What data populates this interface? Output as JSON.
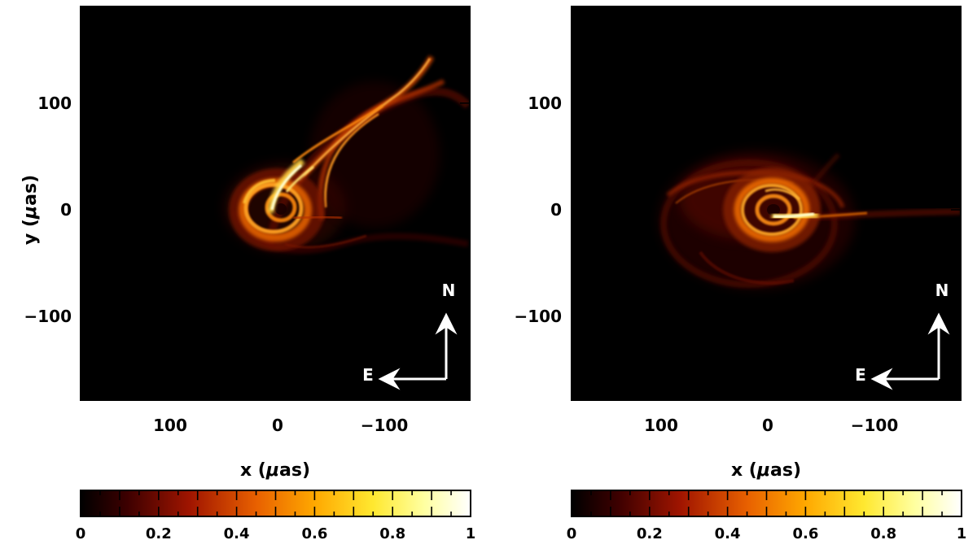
{
  "panels": [
    {
      "id": "left",
      "x_tick_labels": [
        "100",
        "0",
        "−100"
      ],
      "y_tick_labels": [
        "100",
        "0",
        "−100"
      ],
      "xlabel_prefix": "x (",
      "xlabel_mu": "μ",
      "xlabel_suffix": "as)",
      "ylabel_prefix": "y (",
      "ylabel_mu": "μ",
      "ylabel_suffix": "as)",
      "compass_north": "N",
      "compass_east": "E",
      "colorbar_ticks": [
        "0",
        "0.2",
        "0.4",
        "0.6",
        "0.8",
        "1"
      ]
    },
    {
      "id": "right",
      "x_tick_labels": [
        "100",
        "0",
        "−100"
      ],
      "y_tick_labels": [
        "100",
        "0",
        "−100"
      ],
      "xlabel_prefix": "x (",
      "xlabel_mu": "μ",
      "xlabel_suffix": "as)",
      "compass_north": "N",
      "compass_east": "E",
      "colorbar_ticks": [
        "0",
        "0.2",
        "0.4",
        "0.6",
        "0.8",
        "1"
      ]
    }
  ],
  "colors": {
    "background": "#000000",
    "cmap_stops": [
      "#000000",
      "#5a0000",
      "#b42000",
      "#f07000",
      "#ffc000",
      "#ffff40",
      "#ffffff"
    ]
  }
}
